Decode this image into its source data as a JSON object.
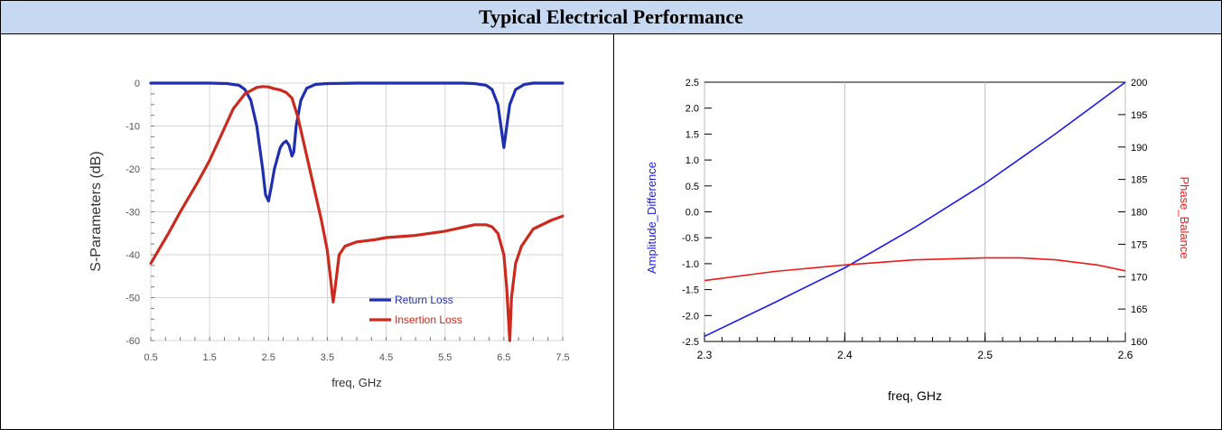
{
  "header": {
    "title": "Typical Electrical Performance"
  },
  "chart_data": [
    {
      "type": "line",
      "title": "",
      "xlabel": "freq, GHz",
      "ylabel": "S-Parameters (dB)",
      "xlim": [
        0.5,
        7.5
      ],
      "ylim": [
        -60,
        0
      ],
      "xticks": [
        "0.5",
        "1.5",
        "2.5",
        "3.5",
        "4.5",
        "5.5",
        "6.5",
        "7.5"
      ],
      "yticks": [
        "0",
        "-10",
        "-20",
        "-30",
        "-40",
        "-50",
        "-60"
      ],
      "grid": true,
      "legend_position": "bottom-right",
      "series": [
        {
          "name": "Return Loss",
          "color": "#1f2fb0",
          "x": [
            0.5,
            1.0,
            1.5,
            1.8,
            2.0,
            2.1,
            2.2,
            2.3,
            2.4,
            2.45,
            2.5,
            2.55,
            2.6,
            2.7,
            2.75,
            2.8,
            2.85,
            2.9,
            2.93,
            2.97,
            3.05,
            3.15,
            3.3,
            3.5,
            4.0,
            4.5,
            5.0,
            5.5,
            5.8,
            6.0,
            6.2,
            6.3,
            6.4,
            6.45,
            6.5,
            6.55,
            6.6,
            6.7,
            6.85,
            7.0,
            7.5
          ],
          "y": [
            0,
            0,
            0,
            -0.1,
            -0.5,
            -1.5,
            -4,
            -10,
            -20,
            -26,
            -27.5,
            -24,
            -20,
            -15,
            -14,
            -13.5,
            -14.5,
            -17,
            -16,
            -10,
            -4,
            -1.2,
            -0.3,
            -0.1,
            0,
            0,
            0,
            0,
            0,
            -0.1,
            -0.5,
            -1.5,
            -5,
            -10,
            -15,
            -10,
            -5,
            -1.5,
            -0.3,
            0,
            0
          ]
        },
        {
          "name": "Insertion Loss",
          "color": "#cc2a1e",
          "x": [
            0.5,
            0.8,
            1.0,
            1.3,
            1.5,
            1.7,
            1.9,
            2.1,
            2.3,
            2.4,
            2.5,
            2.6,
            2.7,
            2.8,
            2.9,
            3.0,
            3.1,
            3.2,
            3.3,
            3.4,
            3.5,
            3.55,
            3.6,
            3.63,
            3.7,
            3.8,
            4.0,
            4.3,
            4.5,
            5.0,
            5.5,
            6.0,
            6.2,
            6.3,
            6.4,
            6.5,
            6.55,
            6.6,
            6.63,
            6.7,
            6.8,
            7.0,
            7.3,
            7.5
          ],
          "y": [
            -42,
            -35,
            -30,
            -23,
            -18,
            -12,
            -6,
            -2.5,
            -1,
            -0.8,
            -0.9,
            -1.3,
            -1.6,
            -2.2,
            -3.5,
            -8,
            -14,
            -20,
            -26,
            -32,
            -39,
            -45,
            -51,
            -48,
            -40,
            -38,
            -37,
            -36.5,
            -36,
            -35.5,
            -34.5,
            -33,
            -33,
            -33.5,
            -35,
            -40,
            -48,
            -60,
            -50,
            -42,
            -38,
            -34,
            -32,
            -31
          ]
        }
      ]
    },
    {
      "type": "line",
      "title": "",
      "xlabel": "freq, GHz",
      "ylabel": "Amplitude_Difference",
      "y2label": "Phase_Balance",
      "xlim": [
        2.3,
        2.6
      ],
      "ylim": [
        -2.5,
        2.5
      ],
      "y2lim": [
        160,
        200
      ],
      "xticks": [
        "2.3",
        "2.4",
        "2.5",
        "2.6"
      ],
      "yticks": [
        "2.5",
        "2.0",
        "1.5",
        "1.0",
        "0.5",
        "0.0",
        "-0.5",
        "-1.0",
        "-1.5",
        "-2.0",
        "-2.5"
      ],
      "y2ticks": [
        "200",
        "195",
        "190",
        "185",
        "180",
        "175",
        "170",
        "165",
        "160"
      ],
      "grid": true,
      "series": [
        {
          "axis": "left",
          "color": "#1a1aee",
          "x": [
            2.3,
            2.35,
            2.4,
            2.45,
            2.5,
            2.55,
            2.6
          ],
          "y": [
            -2.4,
            -1.75,
            -1.08,
            -0.3,
            0.55,
            1.5,
            2.5
          ]
        },
        {
          "axis": "right",
          "color": "#ee1a1a",
          "x": [
            2.3,
            2.35,
            2.4,
            2.45,
            2.5,
            2.525,
            2.55,
            2.58,
            2.6
          ],
          "y": [
            169.4,
            170.8,
            171.8,
            172.6,
            172.9,
            172.9,
            172.6,
            171.8,
            170.9
          ]
        }
      ]
    }
  ]
}
